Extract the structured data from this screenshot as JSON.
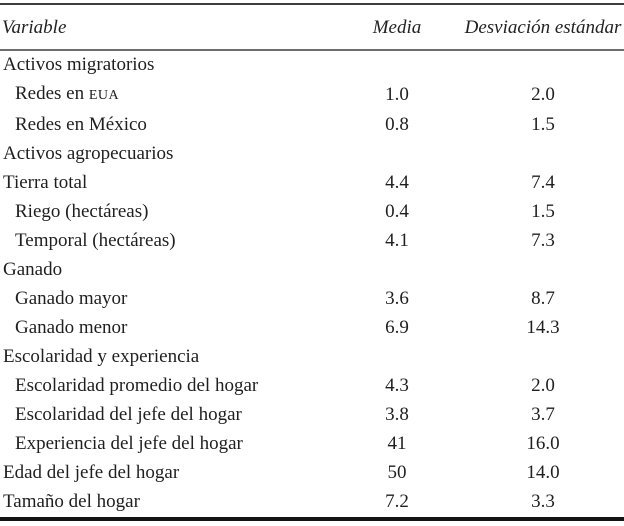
{
  "colors": {
    "background": "#ffffff",
    "text": "#1f1f1f",
    "rule_top": "#3d3d3d",
    "rule_header": "#6e6e6e",
    "rule_bottom": "#131313"
  },
  "table": {
    "headers": [
      {
        "label": "Variable"
      },
      {
        "label": "Media"
      },
      {
        "label": "Desviación estándar"
      }
    ],
    "rows": [
      {
        "label": "Activos migratorios",
        "media": "",
        "sd": "",
        "section": true,
        "indent": false
      },
      {
        "label": "Redes en ",
        "caps": "EUA",
        "media": "1.0",
        "sd": "2.0",
        "section": false,
        "indent": true
      },
      {
        "label": "Redes en México",
        "media": "0.8",
        "sd": "1.5",
        "section": false,
        "indent": true
      },
      {
        "label": "Activos agropecuarios",
        "media": "",
        "sd": "",
        "section": true,
        "indent": false
      },
      {
        "label": "Tierra total",
        "media": "4.4",
        "sd": "7.4",
        "section": false,
        "indent": false
      },
      {
        "label": "Riego (hectáreas)",
        "media": "0.4",
        "sd": "1.5",
        "section": false,
        "indent": true
      },
      {
        "label": "Temporal (hectáreas)",
        "media": "4.1",
        "sd": "7.3",
        "section": false,
        "indent": true
      },
      {
        "label": "Ganado",
        "media": "",
        "sd": "",
        "section": true,
        "indent": false
      },
      {
        "label": "Ganado mayor",
        "media": "3.6",
        "sd": "8.7",
        "section": false,
        "indent": true
      },
      {
        "label": "Ganado menor",
        "media": "6.9",
        "sd": "14.3",
        "section": false,
        "indent": true
      },
      {
        "label": "Escolaridad y experiencia",
        "media": "",
        "sd": "",
        "section": true,
        "indent": false
      },
      {
        "label": "Escolaridad promedio del hogar",
        "media": "4.3",
        "sd": "2.0",
        "section": false,
        "indent": true
      },
      {
        "label": "Escolaridad del jefe del hogar",
        "media": "3.8",
        "sd": "3.7",
        "section": false,
        "indent": true
      },
      {
        "label": "Experiencia del jefe del hogar",
        "media": "41",
        "sd": "16.0",
        "section": false,
        "indent": true
      },
      {
        "label": "Edad del jefe del hogar",
        "media": "50",
        "sd": "14.0",
        "section": false,
        "indent": false
      },
      {
        "label": "Tamaño del hogar",
        "media": "7.2",
        "sd": "3.3",
        "section": false,
        "indent": false
      }
    ]
  }
}
